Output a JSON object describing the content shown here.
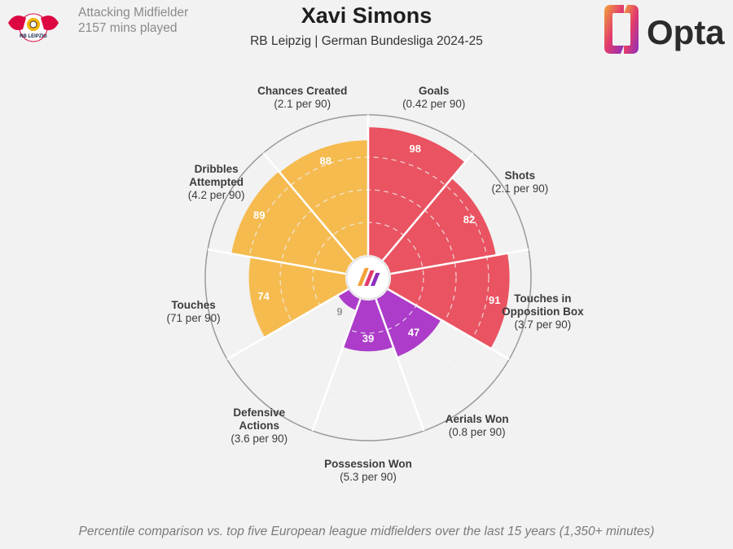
{
  "header": {
    "position": "Attacking Midfielder",
    "minutes": "2157 mins played",
    "title": "Xavi Simons",
    "subtitle": "RB Leipzig | German Bundesliga 2024-25",
    "brand": "Opta",
    "club_logo_text": "RB LEIPZIG"
  },
  "footnote": "Percentile comparison vs. top five European league midfielders over the last 15 years (1,350+ minutes)",
  "colors": {
    "attacking": "#ea5361",
    "possession": "#f5bb4f",
    "defending": "#ac3cc9",
    "background": "#f2f2f2"
  },
  "chart_data": {
    "type": "radar",
    "title": "Xavi Simons",
    "scale": [
      0,
      100
    ],
    "rings": [
      25,
      50,
      75
    ],
    "categories": [
      {
        "name": "Goals",
        "lines": [
          "Goals",
          "(0.42 per 90)"
        ],
        "value": 98,
        "group": "attacking"
      },
      {
        "name": "Shots",
        "lines": [
          "Shots",
          "(2.1 per 90)"
        ],
        "value": 82,
        "group": "attacking"
      },
      {
        "name": "Touches in Opposition Box",
        "lines": [
          "Touches in",
          "Opposition Box",
          "(3.7 per 90)"
        ],
        "value": 91,
        "group": "attacking"
      },
      {
        "name": "Aerials Won",
        "lines": [
          "Aerials Won",
          "(0.8 per 90)"
        ],
        "value": 47,
        "group": "defending"
      },
      {
        "name": "Possession Won",
        "lines": [
          "Possession Won",
          "(5.3 per 90)"
        ],
        "value": 39,
        "group": "defending"
      },
      {
        "name": "Defensive Actions",
        "lines": [
          "Defensive",
          "Actions",
          "(3.6 per 90)"
        ],
        "value": 9,
        "group": "defending"
      },
      {
        "name": "Touches",
        "lines": [
          "Touches",
          "(71 per 90)"
        ],
        "value": 74,
        "group": "possession"
      },
      {
        "name": "Dribbles Attempted",
        "lines": [
          "Dribbles",
          "Attempted",
          "(4.2 per 90)"
        ],
        "value": 89,
        "group": "possession"
      },
      {
        "name": "Chances Created",
        "lines": [
          "Chances Created",
          "(2.1 per 90)"
        ],
        "value": 88,
        "group": "possession"
      }
    ]
  }
}
